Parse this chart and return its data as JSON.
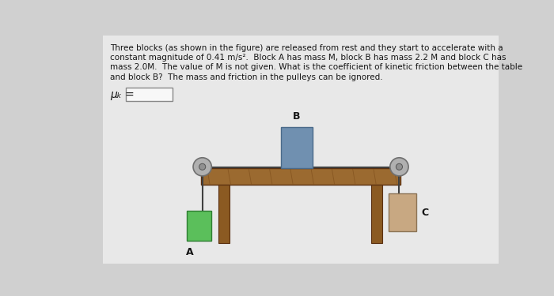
{
  "background_color": "#d0d0d0",
  "text_block_line1": "Three blocks (as shown in the figure) are released from rest and they start to accelerate with a",
  "text_block_line2": "constant magnitude of 0.41 m/s².  Block A has mass M, block B has mass 2.2 M and block C has",
  "text_block_line3": "mass 2.0M.  The value of M is not given. What is the coefficient of kinetic friction between the table",
  "text_block_line4": "and block B?  The mass and friction in the pulleys can be ignored.",
  "mu_label": "μₖ =",
  "label_A": "A",
  "label_B": "B",
  "label_C": "C",
  "table_color": "#9B6A30",
  "table_edge_color": "#5a3010",
  "table_leg_color": "#8B5A22",
  "block_B_color": "#7090B0",
  "block_B_edge": "#4a6a8a",
  "block_A_color": "#5BBF5B",
  "block_A_edge": "#2e7d32",
  "block_C_color": "#C8A882",
  "block_C_edge": "#8B7355",
  "pulley_color": "#B0B0B0",
  "pulley_edge": "#707070",
  "rope_color": "#404040",
  "answer_box_color": "#f8f8f8",
  "text_color": "#151515",
  "white_panel_color": "#e8e8e8"
}
